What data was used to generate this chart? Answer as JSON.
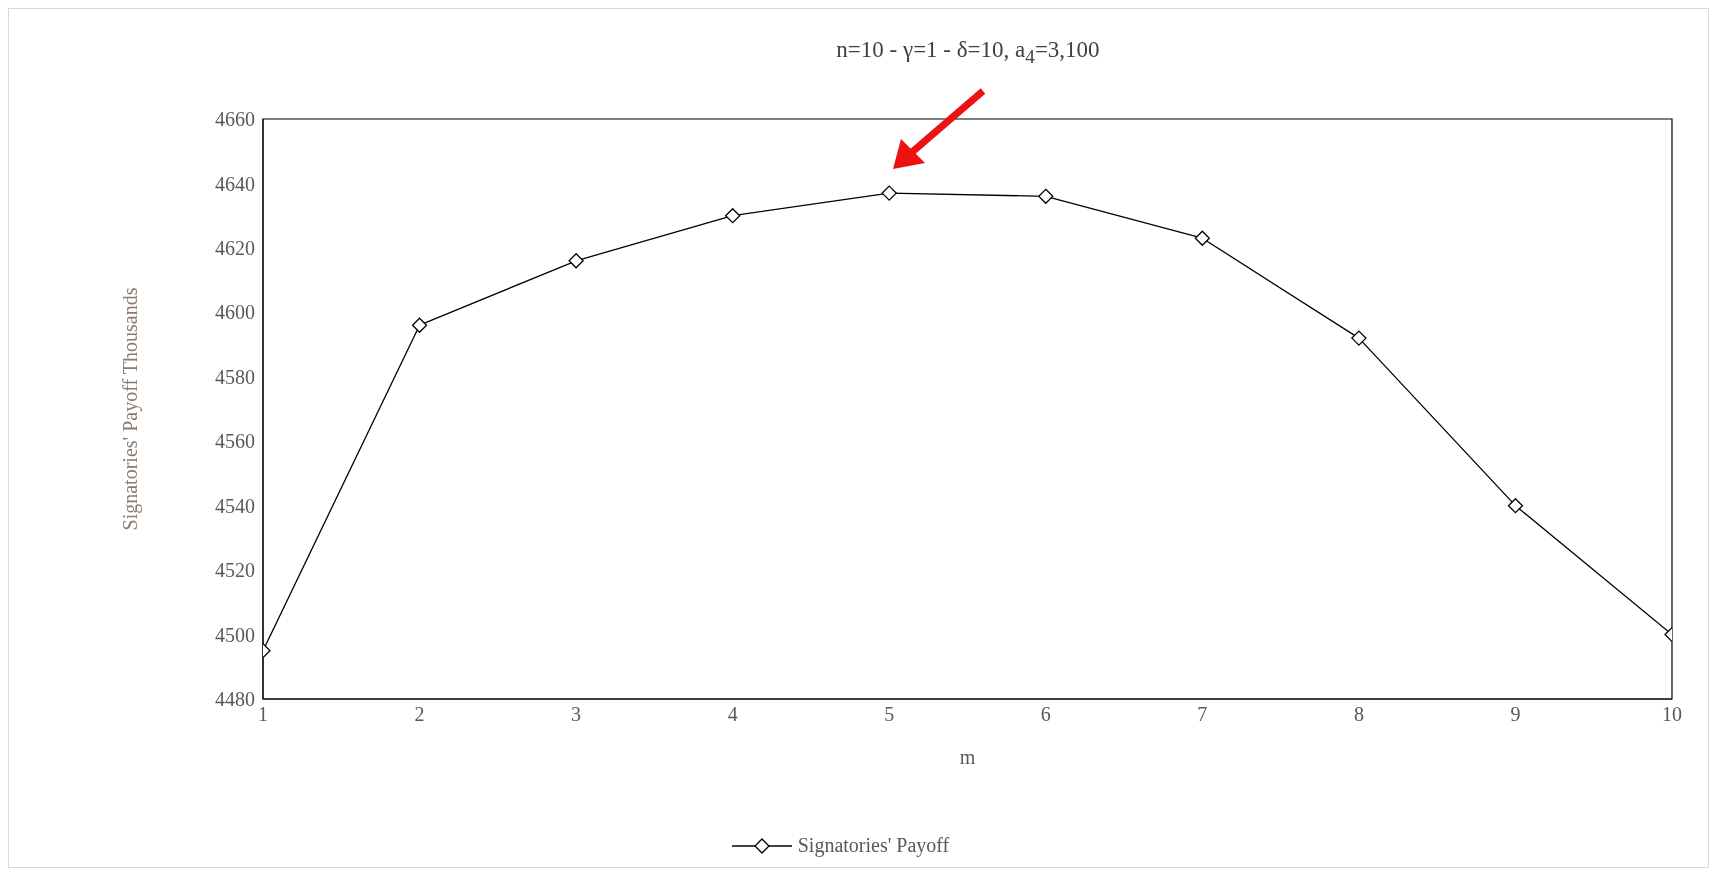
{
  "chart_data": {
    "type": "line",
    "title": "n=10 - γ=1 - δ=10, a$_{4}$=3,100",
    "xlabel": "m",
    "ylabel": "Signatories' Payoff  Thousands",
    "x": [
      1,
      2,
      3,
      4,
      5,
      6,
      7,
      8,
      9,
      10
    ],
    "series": [
      {
        "name": "Signatories' Payoff",
        "color": "#000000",
        "values": [
          4495,
          4596,
          4616,
          4630,
          4637,
          4636,
          4623,
          4592,
          4540,
          4500
        ]
      }
    ],
    "xlim": [
      1,
      10
    ],
    "xticks": [
      1,
      2,
      3,
      4,
      5,
      6,
      7,
      8,
      9,
      10
    ],
    "ylim": [
      4480,
      4660
    ],
    "yticks": [
      4480,
      4500,
      4520,
      4540,
      4560,
      4580,
      4600,
      4620,
      4640,
      4660
    ],
    "grid": false,
    "legend": "bottom",
    "marker": "diamond",
    "line_style": "solid"
  }
}
